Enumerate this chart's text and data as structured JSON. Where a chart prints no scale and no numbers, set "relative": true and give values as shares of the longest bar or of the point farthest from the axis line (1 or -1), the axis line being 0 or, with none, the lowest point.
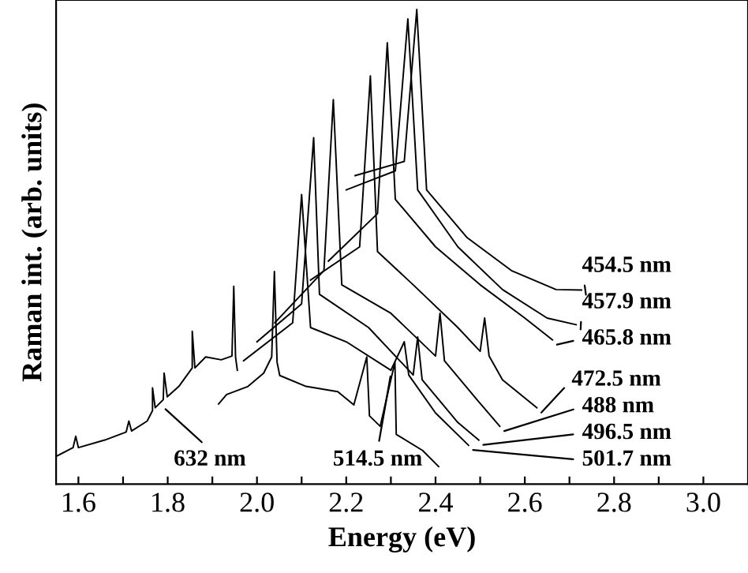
{
  "chart_data": {
    "type": "line",
    "relative": true,
    "xlabel": "Energy (eV)",
    "ylabel": "Raman int. (arb. units)",
    "xlim": [
      1.55,
      3.1
    ],
    "xticks": [
      1.6,
      {
        "value": 1.7,
        "label": null
      },
      1.8,
      {
        "value": 1.9,
        "label": null
      },
      {
        "value": 2.0,
        "label": "2.0"
      },
      {
        "value": 2.1,
        "label": null
      },
      2.2,
      {
        "value": 2.3,
        "label": null
      },
      2.4,
      {
        "value": 2.5,
        "label": null
      },
      2.6,
      {
        "value": 2.7,
        "label": null
      },
      2.8,
      {
        "value": 2.9,
        "label": null
      },
      {
        "value": 3.0,
        "label": "3.0"
      }
    ],
    "grid": false,
    "legend": "right",
    "marker": "none",
    "line_style": "solid",
    "series": [
      {
        "name": "632 nm",
        "color": "#000000",
        "x": [
          1.553,
          1.588,
          1.594,
          1.6,
          1.659,
          1.707,
          1.713,
          1.719,
          1.754,
          1.766,
          1.766,
          1.772,
          1.79,
          1.792,
          1.799,
          1.825,
          1.855,
          1.855,
          1.861,
          1.885,
          1.92,
          1.944,
          1.948,
          1.952,
          1.956
        ],
        "values": [
          0.06,
          0.077,
          0.101,
          0.077,
          0.093,
          0.11,
          0.133,
          0.112,
          0.133,
          0.155,
          0.203,
          0.161,
          0.178,
          0.234,
          0.184,
          0.206,
          0.245,
          0.322,
          0.245,
          0.268,
          0.262,
          0.27,
          0.417,
          0.268,
          0.24
        ]
      },
      {
        "name": "514.5 nm",
        "color": "#000000",
        "x": [
          1.914,
          1.932,
          1.98,
          2.015,
          2.033,
          2.039,
          2.045,
          2.051,
          2.11,
          2.181,
          2.217,
          2.246,
          2.252,
          2.276,
          2.309,
          2.312,
          2.371,
          2.407
        ],
        "values": [
          0.169,
          0.189,
          0.206,
          0.234,
          0.268,
          0.448,
          0.257,
          0.229,
          0.206,
          0.195,
          0.167,
          0.268,
          0.144,
          0.122,
          0.257,
          0.105,
          0.071,
          0.037
        ]
      },
      {
        "name": "501.7 nm",
        "color": "#000000",
        "x": [
          1.97,
          2.08,
          2.1,
          2.12,
          2.2,
          2.3,
          2.33,
          2.34,
          2.4,
          2.474
        ],
        "values": [
          0.26,
          0.34,
          0.61,
          0.33,
          0.3,
          0.24,
          0.3,
          0.23,
          0.15,
          0.082
        ]
      },
      {
        "name": "496.5 nm",
        "color": "#000000",
        "x": [
          2.0,
          2.1,
          2.127,
          2.14,
          2.25,
          2.35,
          2.36,
          2.37,
          2.45,
          2.497
        ],
        "values": [
          0.3,
          0.38,
          0.73,
          0.4,
          0.33,
          0.23,
          0.31,
          0.22,
          0.13,
          0.093
        ]
      },
      {
        "name": "488 nm",
        "color": "#000000",
        "x": [
          2.04,
          2.15,
          2.171,
          2.19,
          2.3,
          2.4,
          2.41,
          2.42,
          2.5,
          2.544
        ],
        "values": [
          0.34,
          0.45,
          0.81,
          0.42,
          0.36,
          0.27,
          0.36,
          0.26,
          0.17,
          0.122
        ]
      },
      {
        "name": "472.5 nm",
        "color": "#000000",
        "x": [
          2.12,
          2.23,
          2.254,
          2.27,
          2.35,
          2.45,
          2.5,
          2.51,
          2.52,
          2.55,
          2.627
        ],
        "values": [
          0.43,
          0.5,
          0.86,
          0.49,
          0.42,
          0.33,
          0.28,
          0.35,
          0.27,
          0.22,
          0.161
        ]
      },
      {
        "name": "465.8 nm",
        "color": "#000000",
        "x": [
          2.16,
          2.27,
          2.292,
          2.31,
          2.4,
          2.5,
          2.6,
          2.662
        ],
        "values": [
          0.47,
          0.57,
          0.93,
          0.6,
          0.5,
          0.42,
          0.35,
          0.304
        ]
      },
      {
        "name": "457.9 nm",
        "color": "#000000",
        "x": [
          2.2,
          2.31,
          2.338,
          2.36,
          2.45,
          2.55,
          2.65,
          2.715
        ],
        "values": [
          0.62,
          0.66,
          0.98,
          0.62,
          0.5,
          0.41,
          0.35,
          0.336
        ]
      },
      {
        "name": "454.5 nm",
        "color": "#000000",
        "x": [
          2.22,
          2.33,
          2.358,
          2.38,
          2.47,
          2.57,
          2.67,
          2.727
        ],
        "values": [
          0.65,
          0.68,
          1.0,
          0.62,
          0.52,
          0.45,
          0.41,
          0.409
        ]
      }
    ]
  }
}
